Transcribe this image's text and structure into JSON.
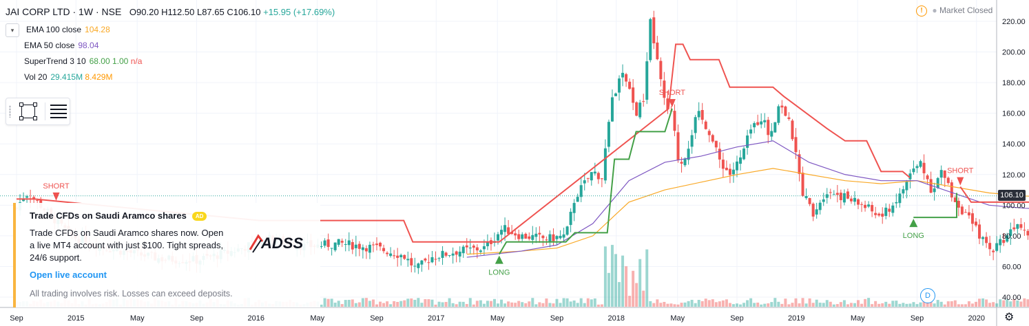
{
  "header": {
    "symbol": "JAI CORP LTD · 1W · NSE",
    "ohlc": "O90.20 H112.50 L87.65 C106.10",
    "change": "+15.95 (+17.69%)"
  },
  "legend": [
    {
      "name": "EMA 100 close",
      "value": "104.28",
      "color": "#f9a825"
    },
    {
      "name": "EMA 50 close",
      "value": "98.04",
      "color": "#7e57c2"
    },
    {
      "name": "SuperTrend 3 10",
      "value": "68.00",
      "value2": "1.00",
      "value3": "n/a",
      "color": "#43a047",
      "color3": "#ef5350"
    },
    {
      "name": "Vol 20",
      "value": "29.415M",
      "value2": "8.429M",
      "color": "#26a69a",
      "color2": "#ff9800"
    }
  ],
  "market_status": "Market Closed",
  "last_price": "106.10",
  "ad": {
    "title": "Trade CFDs on Saudi Aramco shares",
    "badge": "AD",
    "body": "Trade CFDs on Saudi Aramco shares now. Open a live MT4 account with just $100. Tight spreads, 24/6 support.",
    "cta": "Open live account",
    "disclaimer": "All trading involves risk. Losses can exceed deposits.",
    "logo_text": "ADSS"
  },
  "d_badge": "D",
  "chart_data": {
    "type": "candlestick",
    "yaxis_ticks": [
      "220.00",
      "200.00",
      "180.00",
      "160.00",
      "140.00",
      "120.00",
      "100.00",
      "80.00",
      "60.00",
      "40.00"
    ],
    "ylim": [
      35,
      228
    ],
    "xaxis_ticks": [
      {
        "label": "Sep",
        "t": 0
      },
      {
        "label": "2015",
        "t": 0.33
      },
      {
        "label": "May",
        "t": 0.67
      },
      {
        "label": "Sep",
        "t": 1.0
      },
      {
        "label": "2016",
        "t": 1.33
      },
      {
        "label": "May",
        "t": 1.67
      },
      {
        "label": "Sep",
        "t": 2.0
      },
      {
        "label": "2017",
        "t": 2.33
      },
      {
        "label": "May",
        "t": 2.67
      },
      {
        "label": "Sep",
        "t": 3.0
      },
      {
        "label": "2018",
        "t": 3.33
      },
      {
        "label": "May",
        "t": 3.67
      },
      {
        "label": "Sep",
        "t": 4.0
      },
      {
        "label": "2019",
        "t": 4.33
      },
      {
        "label": "May",
        "t": 4.67
      },
      {
        "label": "Sep",
        "t": 5.0
      },
      {
        "label": "2020",
        "t": 5.33
      }
    ],
    "close_path": [
      [
        0,
        98
      ],
      [
        0.05,
        108
      ],
      [
        0.1,
        104
      ],
      [
        0.3,
        80
      ],
      [
        0.5,
        72
      ],
      [
        0.8,
        65
      ],
      [
        1.0,
        64
      ],
      [
        1.2,
        70
      ],
      [
        1.4,
        78
      ],
      [
        1.6,
        73
      ],
      [
        1.8,
        75
      ],
      [
        2.0,
        72
      ],
      [
        2.15,
        67
      ],
      [
        2.22,
        58
      ],
      [
        2.3,
        66
      ],
      [
        2.45,
        70
      ],
      [
        2.6,
        72
      ],
      [
        2.7,
        85
      ],
      [
        2.8,
        80
      ],
      [
        2.95,
        78
      ],
      [
        3.05,
        80
      ],
      [
        3.1,
        105
      ],
      [
        3.2,
        122
      ],
      [
        3.25,
        118
      ],
      [
        3.3,
        165
      ],
      [
        3.36,
        186
      ],
      [
        3.4,
        175
      ],
      [
        3.44,
        160
      ],
      [
        3.48,
        168
      ],
      [
        3.52,
        220
      ],
      [
        3.56,
        192
      ],
      [
        3.6,
        165
      ],
      [
        3.64,
        158
      ],
      [
        3.68,
        125
      ],
      [
        3.72,
        135
      ],
      [
        3.78,
        160
      ],
      [
        3.84,
        150
      ],
      [
        3.9,
        130
      ],
      [
        3.96,
        120
      ],
      [
        4.02,
        130
      ],
      [
        4.08,
        150
      ],
      [
        4.14,
        158
      ],
      [
        4.18,
        145
      ],
      [
        4.24,
        168
      ],
      [
        4.3,
        150
      ],
      [
        4.36,
        110
      ],
      [
        4.42,
        95
      ],
      [
        4.5,
        110
      ],
      [
        4.6,
        105
      ],
      [
        4.7,
        100
      ],
      [
        4.8,
        92
      ],
      [
        4.9,
        105
      ],
      [
        4.96,
        120
      ],
      [
        5.02,
        128
      ],
      [
        5.08,
        110
      ],
      [
        5.14,
        122
      ],
      [
        5.2,
        105
      ],
      [
        5.28,
        92
      ],
      [
        5.34,
        82
      ],
      [
        5.4,
        70
      ],
      [
        5.48,
        78
      ],
      [
        5.56,
        90
      ],
      [
        5.64,
        80
      ],
      [
        5.72,
        98
      ],
      [
        5.8,
        102
      ],
      [
        5.86,
        92
      ],
      [
        5.92,
        95
      ],
      [
        5.96,
        106.1
      ]
    ],
    "ema100": [
      [
        2.5,
        68
      ],
      [
        2.8,
        70
      ],
      [
        3.0,
        72
      ],
      [
        3.2,
        80
      ],
      [
        3.4,
        102
      ],
      [
        3.6,
        110
      ],
      [
        3.8,
        115
      ],
      [
        4.0,
        120
      ],
      [
        4.2,
        124
      ],
      [
        4.4,
        120
      ],
      [
        4.6,
        116
      ],
      [
        4.8,
        114
      ],
      [
        5.0,
        116
      ],
      [
        5.2,
        112
      ],
      [
        5.4,
        108
      ],
      [
        5.6,
        106
      ],
      [
        5.8,
        105
      ],
      [
        5.96,
        104.3
      ]
    ],
    "ema50": [
      [
        2.5,
        66
      ],
      [
        2.8,
        70
      ],
      [
        3.0,
        74
      ],
      [
        3.2,
        88
      ],
      [
        3.4,
        116
      ],
      [
        3.6,
        128
      ],
      [
        3.8,
        132
      ],
      [
        4.0,
        138
      ],
      [
        4.2,
        142
      ],
      [
        4.4,
        128
      ],
      [
        4.6,
        120
      ],
      [
        4.8,
        116
      ],
      [
        5.0,
        116
      ],
      [
        5.2,
        108
      ],
      [
        5.4,
        100
      ],
      [
        5.6,
        98
      ],
      [
        5.8,
        97
      ],
      [
        5.96,
        98
      ]
    ],
    "supertrend_up": [
      [
        2.68,
        68
      ],
      [
        2.72,
        76
      ],
      [
        3.05,
        76
      ],
      [
        3.1,
        82
      ],
      [
        3.28,
        82
      ],
      [
        3.32,
        130
      ],
      [
        3.4,
        130
      ],
      [
        3.44,
        148
      ],
      [
        3.6,
        148
      ],
      [
        3.64,
        163
      ]
    ],
    "supertrend_dn": [
      [
        0.0,
        104
      ],
      [
        0.1,
        104
      ],
      [
        1.35,
        90
      ],
      [
        2.15,
        90
      ],
      [
        2.2,
        76
      ],
      [
        2.68,
        76
      ],
      [
        3.62,
        163
      ],
      [
        3.66,
        205
      ],
      [
        3.7,
        205
      ],
      [
        3.74,
        195
      ],
      [
        3.9,
        195
      ],
      [
        3.96,
        177
      ],
      [
        4.2,
        177
      ],
      [
        4.26,
        171
      ],
      [
        4.5,
        150
      ],
      [
        4.6,
        142
      ],
      [
        4.72,
        142
      ],
      [
        4.8,
        122
      ],
      [
        4.92,
        122
      ],
      [
        4.96,
        118
      ]
    ],
    "supertrend_up2": [
      [
        4.98,
        92
      ],
      [
        5.22,
        92
      ],
      [
        5.22,
        108
      ]
    ],
    "supertrend_dn2": [
      [
        5.24,
        112
      ],
      [
        5.3,
        102
      ],
      [
        5.94,
        102
      ]
    ],
    "signals": [
      {
        "label": "SHORT",
        "t": 0.22,
        "y": 102,
        "dir": "down",
        "color": "#ef5350"
      },
      {
        "label": "LONG",
        "t": 2.68,
        "y": 68,
        "dir": "up",
        "color": "#43a047"
      },
      {
        "label": "SHORT",
        "t": 3.64,
        "y": 163,
        "dir": "down",
        "color": "#ef5350"
      },
      {
        "label": "LONG",
        "t": 4.98,
        "y": 92,
        "dir": "up",
        "color": "#43a047"
      },
      {
        "label": "SHORT",
        "t": 5.24,
        "y": 112,
        "dir": "down",
        "color": "#ef5350"
      },
      {
        "label": "LONG",
        "t": 5.93,
        "y": 84,
        "dir": "up",
        "color": "#43a047"
      }
    ]
  }
}
